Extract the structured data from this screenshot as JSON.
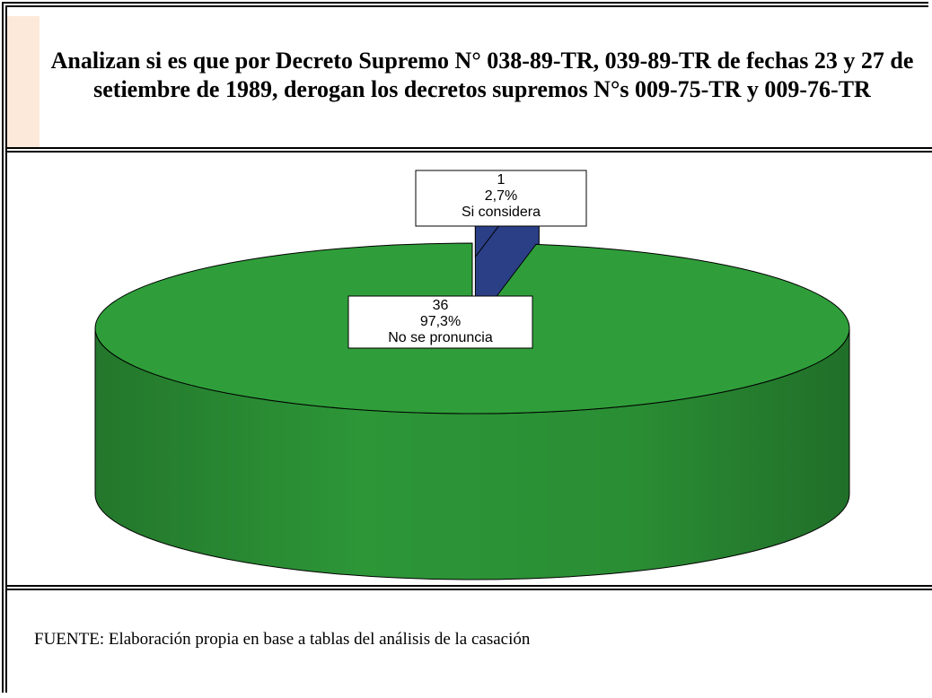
{
  "chart_data": {
    "type": "pie",
    "title": "Analizan si es que por Decreto Supremo N° 038-89-TR, 039-89-TR de fechas 23 y 27 de setiembre de 1989, derogan los decretos supremos N°s 009-75-TR y 009-76-TR",
    "categories": [
      "Si considera",
      "No se pronuncia"
    ],
    "values": [
      1,
      36
    ],
    "percentages": [
      2.7,
      97.3
    ],
    "percentage_labels": [
      "2,7%",
      "97,3%"
    ],
    "colors": [
      "#2b3f86",
      "#2f9e3a"
    ],
    "source": "FUENTE: Elaboración propia en base a tablas del  análisis de la casación"
  }
}
